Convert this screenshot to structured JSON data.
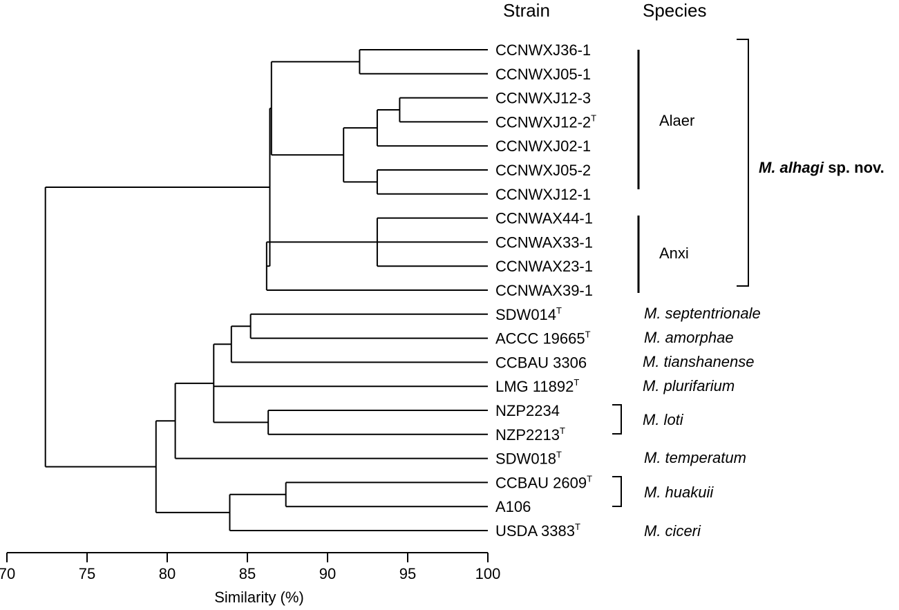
{
  "header": {
    "strain": "Strain",
    "species": "Species"
  },
  "strains": [
    {
      "name": "CCNWXJ36-1",
      "sup": ""
    },
    {
      "name": "CCNWXJ05-1",
      "sup": ""
    },
    {
      "name": "CCNWXJ12-3",
      "sup": ""
    },
    {
      "name": "CCNWXJ12-2",
      "sup": "T"
    },
    {
      "name": "CCNWXJ02-1",
      "sup": ""
    },
    {
      "name": "CCNWXJ05-2",
      "sup": ""
    },
    {
      "name": "CCNWXJ12-1",
      "sup": ""
    },
    {
      "name": "CCNWAX44-1",
      "sup": ""
    },
    {
      "name": "CCNWAX33-1",
      "sup": ""
    },
    {
      "name": "CCNWAX23-1",
      "sup": ""
    },
    {
      "name": "CCNWAX39-1",
      "sup": ""
    },
    {
      "name": "SDW014",
      "sup": "T"
    },
    {
      "name": "ACCC 19665",
      "sup": "T"
    },
    {
      "name": "CCBAU 3306",
      "sup": ""
    },
    {
      "name": "LMG 11892",
      "sup": "T"
    },
    {
      "name": "NZP2234",
      "sup": ""
    },
    {
      "name": "NZP2213",
      "sup": "T"
    },
    {
      "name": "SDW018",
      "sup": "T"
    },
    {
      "name": "CCBAU 2609",
      "sup": "T"
    },
    {
      "name": "A106",
      "sup": ""
    },
    {
      "name": "USDA 3383",
      "sup": "T"
    }
  ],
  "groups": {
    "alaer": "Alaer",
    "anxi": "Anxi"
  },
  "new_species": {
    "genus": "M. alhagi",
    "suffix": " sp. nov."
  },
  "species": [
    "M. septentrionale",
    "M. amorphae",
    "M. tianshanense",
    "M. plurifarium",
    "M. loti",
    "M. temperatum",
    "M. huakuii",
    "M. ciceri"
  ],
  "axis": {
    "label": "Similarity (%)",
    "min": 70,
    "max": 100,
    "ticks": [
      70,
      75,
      80,
      85,
      90,
      95,
      100
    ]
  },
  "tree": {
    "root": 72.4,
    "children": [
      {
        "height": 86.4,
        "children": [
          {
            "height": 86.5,
            "children": [
              {
                "height": 92.0,
                "children": [
                  0,
                  1
                ]
              },
              {
                "height": 91.0,
                "children": [
                  {
                    "height": 93.1,
                    "children": [
                      {
                        "height": 94.5,
                        "children": [
                          2,
                          3
                        ]
                      },
                      4
                    ]
                  },
                  {
                    "height": 93.1,
                    "children": [
                      5,
                      6
                    ]
                  }
                ]
              }
            ]
          },
          {
            "height": 86.2,
            "children": [
              {
                "height": 93.1,
                "children": [
                  7,
                  8,
                  9
                ]
              },
              10
            ]
          }
        ]
      },
      {
        "height": 79.3,
        "children": [
          {
            "height": 80.5,
            "children": [
              {
                "height": 82.9,
                "children": [
                  {
                    "height": 84.0,
                    "children": [
                      {
                        "height": 85.2,
                        "children": [
                          11,
                          12
                        ]
                      },
                      13
                    ]
                  },
                  14,
                  {
                    "height": 86.3,
                    "children": [
                      15,
                      16
                    ]
                  }
                ]
              },
              17
            ]
          },
          {
            "height": 83.9,
            "children": [
              {
                "height": 87.4,
                "children": [
                  18,
                  19
                ]
              },
              20
            ]
          }
        ]
      }
    ]
  }
}
